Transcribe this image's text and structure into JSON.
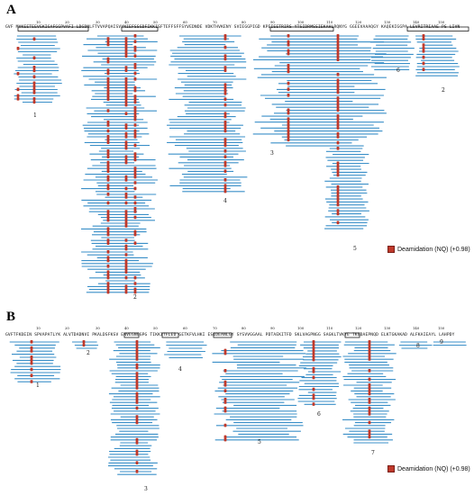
{
  "panels": [
    {
      "label": "A",
      "sequence": "GVF MVKEETEEVGKIGAFGGPVAFI LDGDNLFTVVAPQAISVYNIEFSSGDFIKKISFTEFFSFFSYVEDNDE VDKTHVKENY SVIEGGPIGD KPEIEETRIRS YTSIDRMSSIEKAHLRQNYG GGEEVAAAQGY KAQEKIGGPA LEVRITRIAAE PS LIVN",
      "numbers": [
        "10",
        "20",
        "30",
        "40",
        "50",
        "60",
        "70",
        "80",
        "90",
        "100",
        "110",
        "120",
        "130",
        "140",
        "150"
      ],
      "region_labels": [
        "1",
        "2",
        "3",
        "4",
        "5",
        "6",
        "2"
      ],
      "legend": "Deamidation (NQ) (+0.98)"
    },
    {
      "label": "B",
      "sequence": "GVFTFKDEIN SPVAPATLYK ALVTDADNVI PKALDSFKSV ENVEGNGGPG TIKKITFLED GETKFVLHKI ESIDEANLGY SYSVVGGAAL PDTAEKITFD SKLVAGPNGG SAGKLTVKYE TKGDAEPNQD ELKTGKAKAD ALFKAIEAYL LAHPDY",
      "numbers": [
        "10",
        "20",
        "30",
        "40",
        "50",
        "60",
        "70",
        "80",
        "90",
        "100",
        "110",
        "120",
        "130",
        "140",
        "150"
      ],
      "region_labels": [
        "1",
        "2",
        "3",
        "4",
        "5",
        "6",
        "7",
        "8",
        "9"
      ],
      "legend": "Deamidation (NQ) (+0.98)"
    }
  ],
  "colors": {
    "peptide": "#3a8fc8",
    "deamidation": "#c0392b",
    "box": "#000000"
  }
}
